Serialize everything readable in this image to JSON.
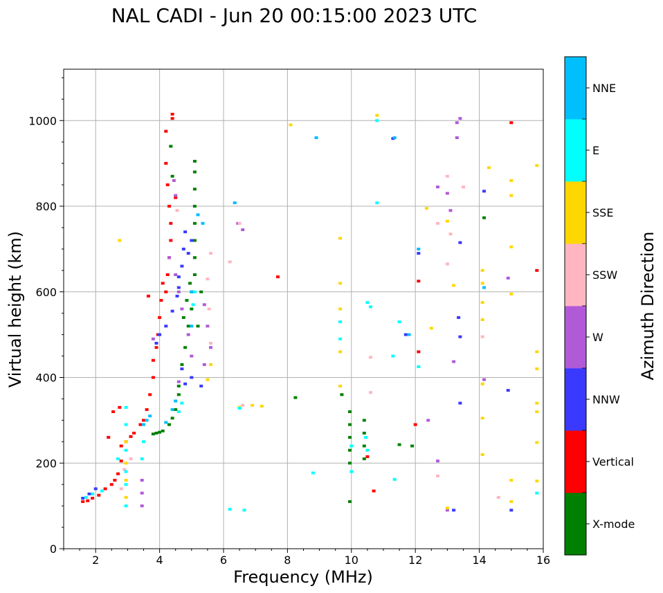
{
  "chart_data": {
    "type": "scatter",
    "title": "NAL CADI - Jun 20 00:15:00 2023 UTC",
    "xlabel": "Frequency (MHz)",
    "ylabel": "Virtual height (km)",
    "xlim": [
      1,
      16
    ],
    "ylim": [
      0,
      1120
    ],
    "xticks": [
      2,
      4,
      6,
      8,
      10,
      12,
      14,
      16
    ],
    "yticks": [
      0,
      200,
      400,
      600,
      800,
      1000
    ],
    "grid": true,
    "colorbar": {
      "label": "Azimuth Direction",
      "categories": [
        {
          "name": "X-mode",
          "color": "#008000"
        },
        {
          "name": "Vertical",
          "color": "#ff0000"
        },
        {
          "name": "NNW",
          "color": "#3a3aff"
        },
        {
          "name": "W",
          "color": "#b15ad8"
        },
        {
          "name": "SSW",
          "color": "#ffb6c1"
        },
        {
          "name": "SSE",
          "color": "#ffd700"
        },
        {
          "name": "E",
          "color": "#00ffff"
        },
        {
          "name": "NNE",
          "color": "#00bfff"
        }
      ]
    },
    "series": [
      {
        "name": "X-mode",
        "points": [
          [
            3.8,
            268
          ],
          [
            3.9,
            270
          ],
          [
            4.0,
            272
          ],
          [
            4.1,
            275
          ],
          [
            4.3,
            290
          ],
          [
            4.4,
            305
          ],
          [
            4.5,
            325
          ],
          [
            4.6,
            360
          ],
          [
            4.6,
            380
          ],
          [
            4.7,
            430
          ],
          [
            4.8,
            470
          ],
          [
            4.9,
            520
          ],
          [
            5.0,
            560
          ],
          [
            5.0,
            600
          ],
          [
            5.1,
            640
          ],
          [
            5.1,
            680
          ],
          [
            5.1,
            720
          ],
          [
            5.1,
            760
          ],
          [
            5.1,
            800
          ],
          [
            5.1,
            840
          ],
          [
            5.1,
            880
          ],
          [
            5.1,
            905
          ],
          [
            4.35,
            940
          ],
          [
            4.4,
            870
          ],
          [
            4.75,
            540
          ],
          [
            4.85,
            580
          ],
          [
            4.95,
            620
          ],
          [
            5.3,
            600
          ],
          [
            5.2,
            520
          ],
          [
            9.95,
            320
          ],
          [
            9.95,
            290
          ],
          [
            9.95,
            260
          ],
          [
            9.95,
            230
          ],
          [
            9.95,
            200
          ],
          [
            9.95,
            110
          ],
          [
            10.4,
            300
          ],
          [
            10.4,
            270
          ],
          [
            10.4,
            240
          ],
          [
            10.4,
            210
          ],
          [
            9.7,
            360
          ],
          [
            8.25,
            353
          ],
          [
            11.5,
            243
          ],
          [
            11.9,
            240
          ],
          [
            14.15,
            773
          ]
        ]
      },
      {
        "name": "Vertical",
        "points": [
          [
            1.6,
            110
          ],
          [
            1.75,
            112
          ],
          [
            1.9,
            118
          ],
          [
            2.1,
            125
          ],
          [
            2.3,
            140
          ],
          [
            2.5,
            150
          ],
          [
            2.6,
            160
          ],
          [
            2.7,
            175
          ],
          [
            2.8,
            205
          ],
          [
            2.8,
            240
          ],
          [
            2.95,
            250
          ],
          [
            3.1,
            262
          ],
          [
            3.2,
            270
          ],
          [
            3.4,
            290
          ],
          [
            3.5,
            300
          ],
          [
            3.6,
            325
          ],
          [
            3.7,
            360
          ],
          [
            3.8,
            400
          ],
          [
            3.8,
            440
          ],
          [
            3.9,
            470
          ],
          [
            3.95,
            500
          ],
          [
            4.0,
            540
          ],
          [
            4.05,
            580
          ],
          [
            4.1,
            620
          ],
          [
            4.2,
            600
          ],
          [
            4.25,
            640
          ],
          [
            4.3,
            680
          ],
          [
            4.35,
            720
          ],
          [
            4.35,
            760
          ],
          [
            4.3,
            800
          ],
          [
            4.25,
            850
          ],
          [
            4.2,
            900
          ],
          [
            4.4,
            1005
          ],
          [
            4.4,
            1015
          ],
          [
            4.2,
            975
          ],
          [
            4.5,
            820
          ],
          [
            2.4,
            260
          ],
          [
            2.55,
            320
          ],
          [
            2.75,
            330
          ],
          [
            3.65,
            590
          ],
          [
            7.7,
            635
          ],
          [
            10.5,
            215
          ],
          [
            10.7,
            135
          ],
          [
            12.1,
            625
          ],
          [
            12.1,
            460
          ],
          [
            12.0,
            290
          ],
          [
            15.8,
            650
          ],
          [
            15.0,
            995
          ]
        ]
      },
      {
        "name": "NNW",
        "points": [
          [
            3.9,
            480
          ],
          [
            4.0,
            500
          ],
          [
            4.2,
            520
          ],
          [
            4.4,
            555
          ],
          [
            4.55,
            590
          ],
          [
            4.6,
            635
          ],
          [
            4.7,
            660
          ],
          [
            4.75,
            700
          ],
          [
            4.8,
            740
          ],
          [
            4.9,
            690
          ],
          [
            5.0,
            720
          ],
          [
            4.6,
            610
          ],
          [
            4.7,
            420
          ],
          [
            4.8,
            385
          ],
          [
            5.3,
            380
          ],
          [
            5.0,
            400
          ],
          [
            1.6,
            118
          ],
          [
            1.8,
            128
          ],
          [
            2.0,
            140
          ],
          [
            11.3,
            958
          ],
          [
            12.1,
            690
          ],
          [
            13.4,
            715
          ],
          [
            13.35,
            540
          ],
          [
            13.4,
            495
          ],
          [
            14.15,
            835
          ],
          [
            14.9,
            370
          ],
          [
            13.4,
            340
          ],
          [
            13.2,
            90
          ],
          [
            15.0,
            90
          ],
          [
            11.7,
            500
          ]
        ]
      },
      {
        "name": "W",
        "points": [
          [
            3.45,
            160
          ],
          [
            3.45,
            130
          ],
          [
            3.45,
            100
          ],
          [
            3.8,
            490
          ],
          [
            4.3,
            680
          ],
          [
            4.5,
            640
          ],
          [
            4.6,
            600
          ],
          [
            4.7,
            560
          ],
          [
            4.9,
            500
          ],
          [
            5.0,
            450
          ],
          [
            5.4,
            570
          ],
          [
            5.5,
            520
          ],
          [
            5.6,
            470
          ],
          [
            5.4,
            430
          ],
          [
            4.5,
            825
          ],
          [
            4.45,
            860
          ],
          [
            4.6,
            390
          ],
          [
            6.45,
            760
          ],
          [
            6.6,
            745
          ],
          [
            13.3,
            995
          ],
          [
            13.3,
            960
          ],
          [
            13.4,
            1005
          ],
          [
            13.0,
            830
          ],
          [
            13.1,
            790
          ],
          [
            12.7,
            845
          ],
          [
            13.2,
            437
          ],
          [
            12.7,
            205
          ],
          [
            12.4,
            300
          ],
          [
            14.15,
            395
          ],
          [
            14.9,
            632
          ],
          [
            13.0,
            90
          ]
        ]
      },
      {
        "name": "SSW",
        "points": [
          [
            2.8,
            140
          ],
          [
            2.9,
            185
          ],
          [
            3.1,
            210
          ],
          [
            6.2,
            670
          ],
          [
            6.6,
            335
          ],
          [
            6.5,
            760
          ],
          [
            5.5,
            630
          ],
          [
            5.55,
            560
          ],
          [
            5.6,
            480
          ],
          [
            13.0,
            870
          ],
          [
            13.5,
            845
          ],
          [
            12.7,
            760
          ],
          [
            13.1,
            735
          ],
          [
            13.0,
            665
          ],
          [
            12.7,
            170
          ],
          [
            14.1,
            495
          ],
          [
            14.6,
            120
          ],
          [
            10.6,
            447
          ],
          [
            10.6,
            365
          ],
          [
            4.55,
            790
          ],
          [
            5.6,
            690
          ]
        ]
      },
      {
        "name": "SSE",
        "points": [
          [
            2.95,
            250
          ],
          [
            2.95,
            200
          ],
          [
            2.95,
            160
          ],
          [
            2.95,
            120
          ],
          [
            2.75,
            720
          ],
          [
            5.5,
            395
          ],
          [
            5.6,
            430
          ],
          [
            6.5,
            330
          ],
          [
            6.9,
            335
          ],
          [
            7.2,
            333
          ],
          [
            8.1,
            990
          ],
          [
            9.65,
            725
          ],
          [
            9.65,
            620
          ],
          [
            9.65,
            560
          ],
          [
            9.65,
            460
          ],
          [
            9.65,
            380
          ],
          [
            10.8,
            1012
          ],
          [
            12.35,
            795
          ],
          [
            13.0,
            765
          ],
          [
            13.2,
            615
          ],
          [
            14.3,
            890
          ],
          [
            15.0,
            860
          ],
          [
            15.0,
            825
          ],
          [
            15.0,
            705
          ],
          [
            15.0,
            595
          ],
          [
            14.1,
            650
          ],
          [
            14.1,
            620
          ],
          [
            14.1,
            575
          ],
          [
            14.1,
            535
          ],
          [
            14.1,
            385
          ],
          [
            14.1,
            305
          ],
          [
            14.1,
            220
          ],
          [
            15.8,
            895
          ],
          [
            15.8,
            460
          ],
          [
            15.8,
            420
          ],
          [
            15.8,
            340
          ],
          [
            15.8,
            320
          ],
          [
            15.8,
            248
          ],
          [
            15.8,
            158
          ],
          [
            15.0,
            160
          ],
          [
            15.0,
            110
          ],
          [
            13.0,
            95
          ],
          [
            12.5,
            515
          ]
        ]
      },
      {
        "name": "E",
        "points": [
          [
            1.7,
            120
          ],
          [
            1.9,
            128
          ],
          [
            2.2,
            135
          ],
          [
            2.95,
            330
          ],
          [
            2.95,
            290
          ],
          [
            2.95,
            230
          ],
          [
            2.95,
            180
          ],
          [
            2.95,
            150
          ],
          [
            2.95,
            100
          ],
          [
            2.7,
            210
          ],
          [
            3.45,
            210
          ],
          [
            3.5,
            250
          ],
          [
            4.6,
            320
          ],
          [
            4.7,
            340
          ],
          [
            5.05,
            570
          ],
          [
            5.1,
            600
          ],
          [
            6.2,
            92
          ],
          [
            6.65,
            90
          ],
          [
            9.65,
            530
          ],
          [
            9.65,
            490
          ],
          [
            10.0,
            240
          ],
          [
            10.0,
            180
          ],
          [
            10.45,
            260
          ],
          [
            10.5,
            230
          ],
          [
            10.8,
            1000
          ],
          [
            10.8,
            808
          ],
          [
            10.5,
            575
          ],
          [
            10.6,
            565
          ],
          [
            11.5,
            530
          ],
          [
            11.3,
            450
          ],
          [
            12.1,
            425
          ],
          [
            15.8,
            130
          ],
          [
            8.8,
            177
          ],
          [
            11.35,
            162
          ],
          [
            6.5,
            328
          ]
        ]
      },
      {
        "name": "NNE",
        "points": [
          [
            3.5,
            290
          ],
          [
            3.6,
            300
          ],
          [
            3.7,
            310
          ],
          [
            4.2,
            295
          ],
          [
            4.4,
            325
          ],
          [
            4.5,
            345
          ],
          [
            5.0,
            520
          ],
          [
            5.0,
            600
          ],
          [
            5.35,
            760
          ],
          [
            5.2,
            780
          ],
          [
            6.35,
            808
          ],
          [
            8.9,
            960
          ],
          [
            11.35,
            960
          ],
          [
            12.1,
            700
          ],
          [
            14.15,
            610
          ],
          [
            11.8,
            500
          ]
        ]
      }
    ]
  }
}
